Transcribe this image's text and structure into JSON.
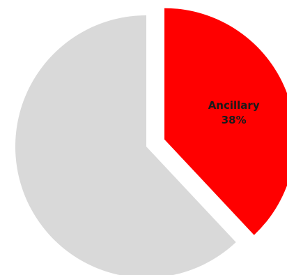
{
  "chart_data": {
    "type": "pie",
    "slices": [
      {
        "label": "Ancillary",
        "value": 38,
        "value_label": "38%",
        "color": "#ff0000",
        "exploded": true
      },
      {
        "label": "",
        "value": 62,
        "value_label": "",
        "color": "#d9d9d9",
        "exploded": false
      }
    ],
    "title": "",
    "legend": "none"
  }
}
